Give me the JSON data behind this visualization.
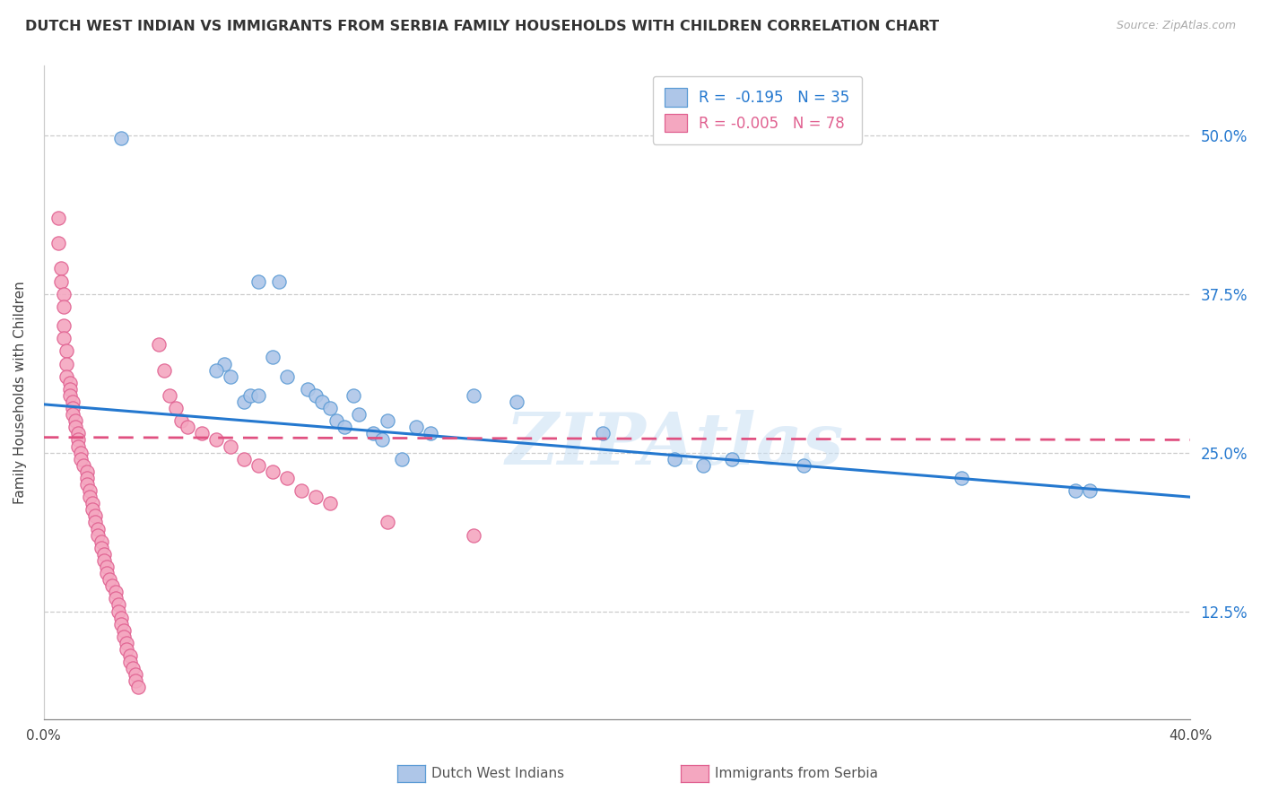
{
  "title": "DUTCH WEST INDIAN VS IMMIGRANTS FROM SERBIA FAMILY HOUSEHOLDS WITH CHILDREN CORRELATION CHART",
  "source": "Source: ZipAtlas.com",
  "ylabel": "Family Households with Children",
  "ytick_labels": [
    "12.5%",
    "25.0%",
    "37.5%",
    "50.0%"
  ],
  "ytick_values": [
    0.125,
    0.25,
    0.375,
    0.5
  ],
  "xmin": 0.0,
  "xmax": 0.4,
  "ymin": 0.04,
  "ymax": 0.555,
  "legend_entry1": "R =  -0.195   N = 35",
  "legend_entry2": "R = -0.005   N = 78",
  "legend_label1": "Dutch West Indians",
  "legend_label2": "Immigrants from Serbia",
  "blue_fill": "#aec6e8",
  "blue_edge": "#5b9bd5",
  "pink_fill": "#f4a7c0",
  "pink_edge": "#e06090",
  "blue_line_color": "#2478cf",
  "pink_line_color": "#e05080",
  "watermark": "ZIPAtlas",
  "blue_scatter": [
    [
      0.027,
      0.498
    ],
    [
      0.075,
      0.385
    ],
    [
      0.082,
      0.385
    ],
    [
      0.063,
      0.32
    ],
    [
      0.06,
      0.315
    ],
    [
      0.065,
      0.31
    ],
    [
      0.07,
      0.29
    ],
    [
      0.072,
      0.295
    ],
    [
      0.075,
      0.295
    ],
    [
      0.08,
      0.325
    ],
    [
      0.085,
      0.31
    ],
    [
      0.092,
      0.3
    ],
    [
      0.095,
      0.295
    ],
    [
      0.097,
      0.29
    ],
    [
      0.1,
      0.285
    ],
    [
      0.102,
      0.275
    ],
    [
      0.105,
      0.27
    ],
    [
      0.108,
      0.295
    ],
    [
      0.11,
      0.28
    ],
    [
      0.115,
      0.265
    ],
    [
      0.118,
      0.26
    ],
    [
      0.12,
      0.275
    ],
    [
      0.125,
      0.245
    ],
    [
      0.13,
      0.27
    ],
    [
      0.135,
      0.265
    ],
    [
      0.15,
      0.295
    ],
    [
      0.165,
      0.29
    ],
    [
      0.195,
      0.265
    ],
    [
      0.22,
      0.245
    ],
    [
      0.23,
      0.24
    ],
    [
      0.24,
      0.245
    ],
    [
      0.265,
      0.24
    ],
    [
      0.32,
      0.23
    ],
    [
      0.36,
      0.22
    ],
    [
      0.365,
      0.22
    ]
  ],
  "pink_scatter": [
    [
      0.005,
      0.435
    ],
    [
      0.005,
      0.415
    ],
    [
      0.006,
      0.395
    ],
    [
      0.006,
      0.385
    ],
    [
      0.007,
      0.375
    ],
    [
      0.007,
      0.365
    ],
    [
      0.007,
      0.35
    ],
    [
      0.007,
      0.34
    ],
    [
      0.008,
      0.33
    ],
    [
      0.008,
      0.32
    ],
    [
      0.008,
      0.31
    ],
    [
      0.009,
      0.305
    ],
    [
      0.009,
      0.3
    ],
    [
      0.009,
      0.295
    ],
    [
      0.01,
      0.29
    ],
    [
      0.01,
      0.285
    ],
    [
      0.01,
      0.28
    ],
    [
      0.011,
      0.275
    ],
    [
      0.011,
      0.27
    ],
    [
      0.012,
      0.265
    ],
    [
      0.012,
      0.26
    ],
    [
      0.012,
      0.255
    ],
    [
      0.013,
      0.25
    ],
    [
      0.013,
      0.245
    ],
    [
      0.014,
      0.24
    ],
    [
      0.015,
      0.235
    ],
    [
      0.015,
      0.23
    ],
    [
      0.015,
      0.225
    ],
    [
      0.016,
      0.22
    ],
    [
      0.016,
      0.215
    ],
    [
      0.017,
      0.21
    ],
    [
      0.017,
      0.205
    ],
    [
      0.018,
      0.2
    ],
    [
      0.018,
      0.195
    ],
    [
      0.019,
      0.19
    ],
    [
      0.019,
      0.185
    ],
    [
      0.02,
      0.18
    ],
    [
      0.02,
      0.175
    ],
    [
      0.021,
      0.17
    ],
    [
      0.021,
      0.165
    ],
    [
      0.022,
      0.16
    ],
    [
      0.022,
      0.155
    ],
    [
      0.023,
      0.15
    ],
    [
      0.024,
      0.145
    ],
    [
      0.025,
      0.14
    ],
    [
      0.025,
      0.135
    ],
    [
      0.026,
      0.13
    ],
    [
      0.026,
      0.125
    ],
    [
      0.027,
      0.12
    ],
    [
      0.027,
      0.115
    ],
    [
      0.028,
      0.11
    ],
    [
      0.028,
      0.105
    ],
    [
      0.029,
      0.1
    ],
    [
      0.029,
      0.095
    ],
    [
      0.03,
      0.09
    ],
    [
      0.03,
      0.085
    ],
    [
      0.031,
      0.08
    ],
    [
      0.032,
      0.075
    ],
    [
      0.032,
      0.07
    ],
    [
      0.033,
      0.065
    ],
    [
      0.04,
      0.335
    ],
    [
      0.042,
      0.315
    ],
    [
      0.044,
      0.295
    ],
    [
      0.046,
      0.285
    ],
    [
      0.048,
      0.275
    ],
    [
      0.05,
      0.27
    ],
    [
      0.055,
      0.265
    ],
    [
      0.06,
      0.26
    ],
    [
      0.065,
      0.255
    ],
    [
      0.07,
      0.245
    ],
    [
      0.075,
      0.24
    ],
    [
      0.08,
      0.235
    ],
    [
      0.085,
      0.23
    ],
    [
      0.09,
      0.22
    ],
    [
      0.095,
      0.215
    ],
    [
      0.1,
      0.21
    ],
    [
      0.12,
      0.195
    ],
    [
      0.15,
      0.185
    ]
  ],
  "blue_trendline_x": [
    0.0,
    0.4
  ],
  "blue_trendline_y": [
    0.288,
    0.215
  ],
  "pink_trendline_x": [
    0.0,
    0.4
  ],
  "pink_trendline_y": [
    0.262,
    0.26
  ]
}
